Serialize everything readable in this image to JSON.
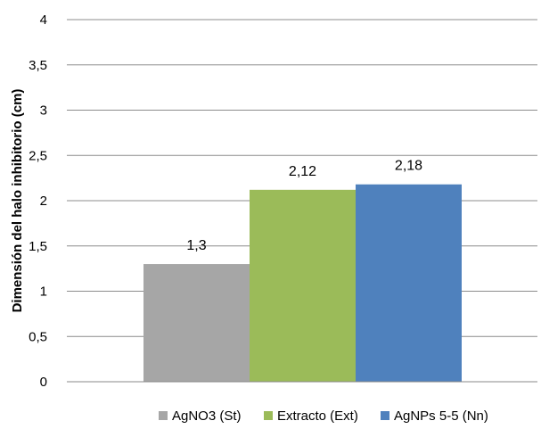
{
  "chart_data": {
    "type": "bar",
    "categories": [
      "AgNO3 (St)",
      "Extracto (Ext)",
      "AgNPs 5-5 (Nn)"
    ],
    "values": [
      1.3,
      2.12,
      2.18
    ],
    "data_labels": [
      "1,3",
      "2,12",
      "2,18"
    ],
    "colors": [
      "#a6a6a6",
      "#9bbb59",
      "#4f81bd"
    ],
    "ylabel": "Dimensión del halo inhibitorio  (cm)",
    "ylim": [
      0,
      4
    ],
    "yticks": [
      0,
      0.5,
      1,
      1.5,
      2,
      2.5,
      3,
      3.5,
      4
    ],
    "ytick_labels": [
      "0",
      "0,5",
      "1",
      "1,5",
      "2",
      "2,5",
      "3",
      "3,5",
      "4"
    ],
    "grid": true,
    "legend_position": "bottom"
  }
}
